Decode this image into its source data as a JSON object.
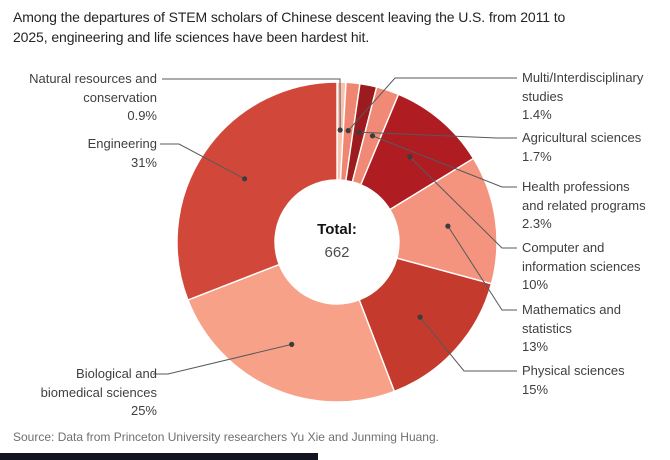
{
  "page": {
    "source": "Source: Data from Princeton University researchers Yu Xie and Junming Huang.",
    "bottom_bar_color": "#12141f"
  },
  "chart_data": {
    "type": "pie",
    "variant": "donut",
    "title": "Among the departures of STEM scholars of Chinese descent leaving the U.S. from 2011 to 2025, engineering and life sciences have been hardest hit.",
    "center_label": {
      "label": "Total:",
      "value": "662"
    },
    "total": 662,
    "unit": "percent of departures",
    "legend": "none (direct labels with leader lines)",
    "slices": [
      {
        "name": "Natural resources and conservation",
        "label_lines": [
          "Natural resources and",
          "conservation"
        ],
        "pct": 0.9,
        "pct_label": "0.9%",
        "color": "#f8c2b1"
      },
      {
        "name": "Multi/Interdisciplinary studies",
        "label_lines": [
          "Multi/Interdisciplinary",
          "studies"
        ],
        "pct": 1.4,
        "pct_label": "1.4%",
        "color": "#ee8672"
      },
      {
        "name": "Agricultural sciences",
        "label_lines": [
          "Agricultural sciences"
        ],
        "pct": 1.7,
        "pct_label": "1.7%",
        "color": "#9b1b1f"
      },
      {
        "name": "Health professions and related programs",
        "label_lines": [
          "Health professions",
          "and related programs"
        ],
        "pct": 2.3,
        "pct_label": "2.3%",
        "color": "#f08a76"
      },
      {
        "name": "Computer and information sciences",
        "label_lines": [
          "Computer and",
          "information sciences"
        ],
        "pct": 10,
        "pct_label": "10%",
        "color": "#af1c22"
      },
      {
        "name": "Mathematics and statistics",
        "label_lines": [
          "Mathematics and",
          "statistics"
        ],
        "pct": 13,
        "pct_label": "13%",
        "color": "#f4937e"
      },
      {
        "name": "Physical sciences",
        "label_lines": [
          "Physical sciences"
        ],
        "pct": 15,
        "pct_label": "15%",
        "color": "#c43a2d"
      },
      {
        "name": "Biological and biomedical sciences",
        "label_lines": [
          "Biological and",
          "biomedical sciences"
        ],
        "pct": 25,
        "pct_label": "25%",
        "color": "#f8a189"
      },
      {
        "name": "Engineering",
        "label_lines": [
          "Engineering"
        ],
        "pct": 31,
        "pct_label": "31%",
        "color": "#d1483b"
      }
    ],
    "style": {
      "leader_line_color": "#58595b",
      "dot_color": "#3c3c3c",
      "slice_divider_color": "#ffffff"
    }
  }
}
